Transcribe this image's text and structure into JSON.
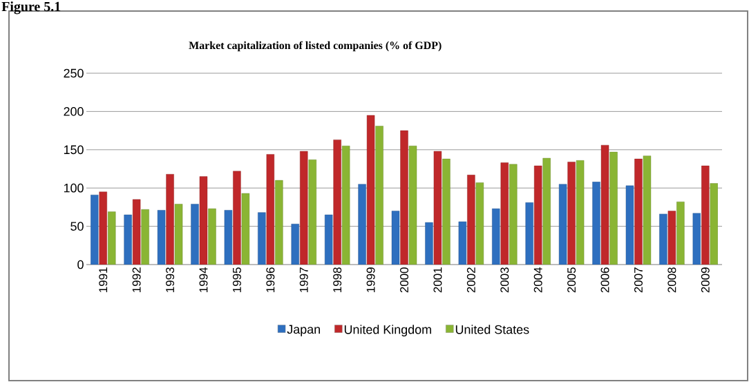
{
  "chart_data": {
    "type": "bar",
    "title": "Market capitalization of listed companies (% of GDP)",
    "annotations": [
      "Figure 5.1"
    ],
    "categories": [
      "1991",
      "1992",
      "1993",
      "1994",
      "1995",
      "1996",
      "1997",
      "1998",
      "1999",
      "2000",
      "2001",
      "2002",
      "2003",
      "2004",
      "2005",
      "2006",
      "2007",
      "2008",
      "2009"
    ],
    "series": [
      {
        "name": "Japan",
        "color": "#2e6fbf",
        "values": [
          91,
          65,
          71,
          79,
          71,
          68,
          53,
          65,
          105,
          70,
          55,
          56,
          73,
          81,
          105,
          108,
          103,
          66,
          67
        ]
      },
      {
        "name": "United Kingdom",
        "color": "#c0282a",
        "values": [
          95,
          85,
          118,
          115,
          122,
          144,
          148,
          163,
          195,
          175,
          148,
          117,
          133,
          129,
          134,
          156,
          138,
          70,
          129
        ]
      },
      {
        "name": "United States",
        "color": "#8ab534",
        "values": [
          69,
          72,
          79,
          73,
          93,
          110,
          137,
          155,
          181,
          155,
          138,
          107,
          131,
          139,
          136,
          147,
          142,
          82,
          106
        ]
      }
    ],
    "ylim": [
      0,
      250
    ],
    "yticks": [
      0,
      50,
      100,
      150,
      200,
      250
    ],
    "grid": "y",
    "legend": "bottom"
  }
}
